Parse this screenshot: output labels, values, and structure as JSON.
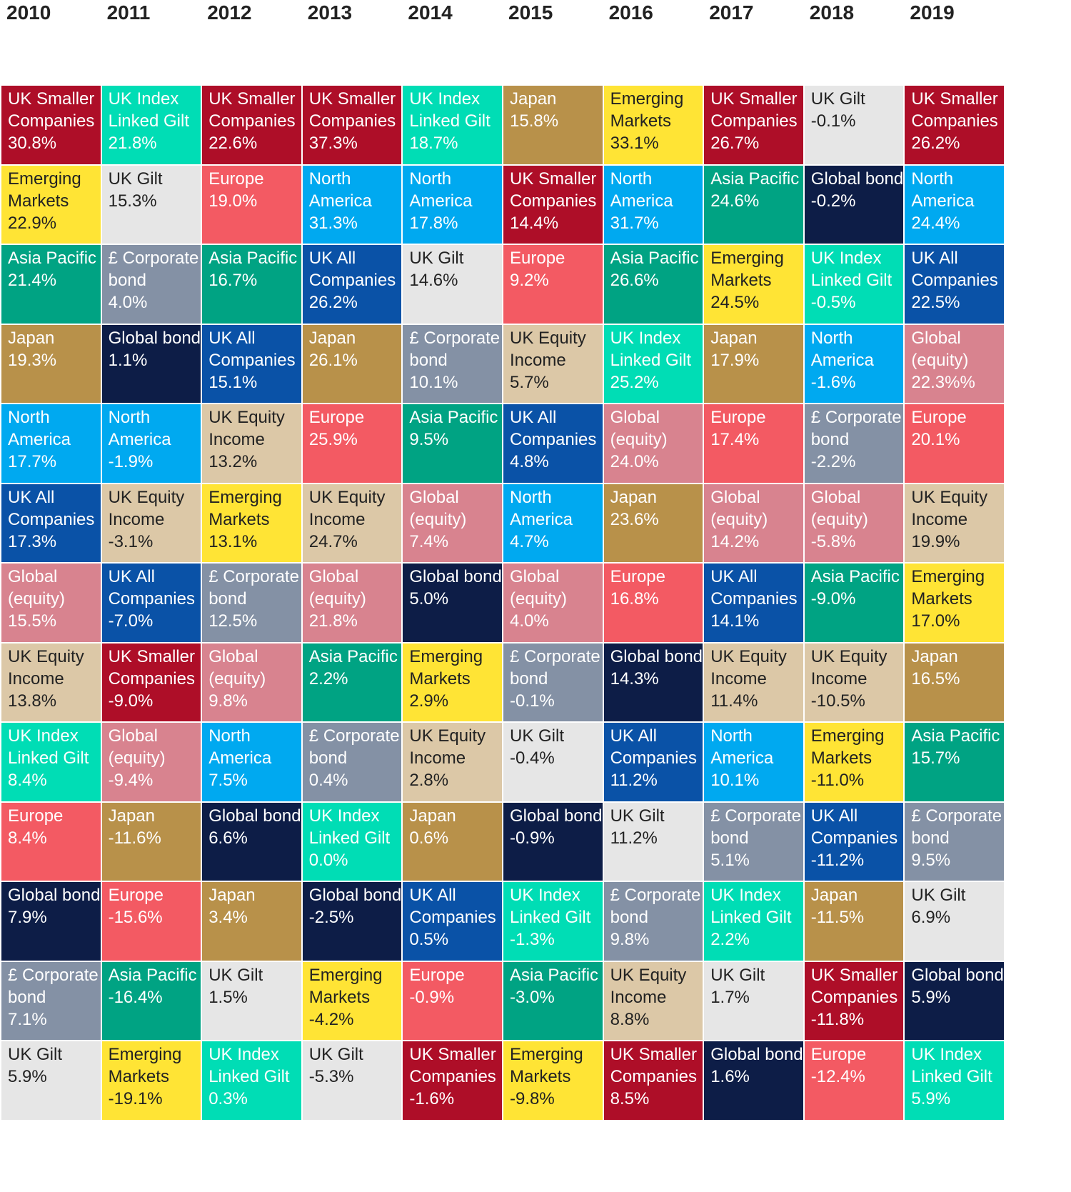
{
  "colors": {
    "UK Smaller Companies": "#AE0E28",
    "UK Index Linked Gilt": "#00DDB5",
    "Japan": "#B8914A",
    "Emerging Markets": "#FFE435",
    "UK Gilt": "#E6E6E6",
    "North America": "#00A9F0",
    "Europe": "#F35A63",
    "Global bond": "#0D1D47",
    "Asia Pacific": "#00A383",
    "£ Corporate bond": "#8491A5",
    "UK All Companies": "#0A52A7",
    "UK Equity Income": "#DCC8A7",
    "Global (equity)": "#D8838F"
  },
  "text_colors": {
    "UK Gilt": "#222222",
    "UK Equity Income": "#222222",
    "Emerging Markets": "#222222",
    "default": "#FFFFFF"
  },
  "chart_data": {
    "type": "table",
    "columns": [
      {
        "year": "2010",
        "cells": [
          {
            "asset": "UK Smaller Companies",
            "label": "UK Smaller\nCompanies",
            "return": "30.8%"
          },
          {
            "asset": "Emerging Markets",
            "label": "Emerging\nMarkets",
            "return": "22.9%"
          },
          {
            "asset": "Asia Pacific",
            "label": "Asia Pacific",
            "return": "21.4%"
          },
          {
            "asset": "Japan",
            "label": "Japan",
            "return": "19.3%"
          },
          {
            "asset": "North America",
            "label": "North\nAmerica",
            "return": "17.7%"
          },
          {
            "asset": "UK All Companies",
            "label": "UK All\nCompanies",
            "return": "17.3%"
          },
          {
            "asset": "Global (equity)",
            "label": "Global\n(equity)",
            "return": "15.5%"
          },
          {
            "asset": "UK Equity Income",
            "label": "UK Equity\nIncome",
            "return": "13.8%"
          },
          {
            "asset": "UK Index Linked Gilt",
            "label": "UK Index\nLinked Gilt",
            "return": "8.4%"
          },
          {
            "asset": "Europe",
            "label": "Europe",
            "return": "8.4%"
          },
          {
            "asset": "Global bond",
            "label": "Global bond",
            "return": "7.9%"
          },
          {
            "asset": "£ Corporate bond",
            "label": "£ Corporate\nbond",
            "return": "7.1%"
          },
          {
            "asset": "UK Gilt",
            "label": "UK Gilt",
            "return": "5.9%"
          }
        ]
      },
      {
        "year": "2011",
        "cells": [
          {
            "asset": "UK Index Linked Gilt",
            "label": "UK Index\nLinked Gilt",
            "return": "21.8%"
          },
          {
            "asset": "UK Gilt",
            "label": "UK Gilt",
            "return": "15.3%"
          },
          {
            "asset": "£ Corporate bond",
            "label": "£ Corporate\nbond",
            "return": "4.0%"
          },
          {
            "asset": "Global bond",
            "label": "Global bond",
            "return": "1.1%"
          },
          {
            "asset": "North America",
            "label": "North\nAmerica",
            "return": "-1.9%"
          },
          {
            "asset": "UK Equity Income",
            "label": "UK Equity\nIncome",
            "return": "-3.1%"
          },
          {
            "asset": "UK All Companies",
            "label": "UK All\nCompanies",
            "return": "-7.0%"
          },
          {
            "asset": "UK Smaller Companies",
            "label": "UK Smaller\nCompanies",
            "return": "-9.0%"
          },
          {
            "asset": "Global (equity)",
            "label": "Global\n(equity)",
            "return": "-9.4%"
          },
          {
            "asset": "Japan",
            "label": "Japan",
            "return": "-11.6%"
          },
          {
            "asset": "Europe",
            "label": "Europe",
            "return": "-15.6%"
          },
          {
            "asset": "Asia Pacific",
            "label": "Asia Pacific",
            "return": "-16.4%"
          },
          {
            "asset": "Emerging Markets",
            "label": "Emerging\nMarkets",
            "return": "-19.1%"
          }
        ]
      },
      {
        "year": "2012",
        "cells": [
          {
            "asset": "UK Smaller Companies",
            "label": "UK Smaller\nCompanies",
            "return": "22.6%"
          },
          {
            "asset": "Europe",
            "label": "Europe",
            "return": "19.0%"
          },
          {
            "asset": "Asia Pacific",
            "label": "Asia Pacific",
            "return": "16.7%"
          },
          {
            "asset": "UK All Companies",
            "label": "UK All\nCompanies",
            "return": "15.1%"
          },
          {
            "asset": "UK Equity Income",
            "label": "UK Equity\nIncome",
            "return": "13.2%"
          },
          {
            "asset": "Emerging Markets",
            "label": "Emerging\nMarkets",
            "return": "13.1%"
          },
          {
            "asset": "£ Corporate bond",
            "label": "£ Corporate\nbond",
            "return": "12.5%"
          },
          {
            "asset": "Global (equity)",
            "label": "Global\n(equity)",
            "return": "9.8%"
          },
          {
            "asset": "North America",
            "label": "North\nAmerica",
            "return": "7.5%"
          },
          {
            "asset": "Global bond",
            "label": "Global bond",
            "return": "6.6%"
          },
          {
            "asset": "Japan",
            "label": "Japan",
            "return": "3.4%"
          },
          {
            "asset": "UK Gilt",
            "label": "UK Gilt",
            "return": "1.5%"
          },
          {
            "asset": "UK Index Linked Gilt",
            "label": "UK Index\nLinked Gilt",
            "return": "0.3%"
          }
        ]
      },
      {
        "year": "2013",
        "cells": [
          {
            "asset": "UK Smaller Companies",
            "label": "UK Smaller\nCompanies",
            "return": "37.3%"
          },
          {
            "asset": "North America",
            "label": "North\nAmerica",
            "return": "31.3%"
          },
          {
            "asset": "UK All Companies",
            "label": "UK All\nCompanies",
            "return": "26.2%"
          },
          {
            "asset": "Japan",
            "label": "Japan",
            "return": "26.1%"
          },
          {
            "asset": "Europe",
            "label": "Europe",
            "return": "25.9%"
          },
          {
            "asset": "UK Equity Income",
            "label": "UK Equity\nIncome",
            "return": "24.7%"
          },
          {
            "asset": "Global (equity)",
            "label": "Global\n(equity)",
            "return": "21.8%"
          },
          {
            "asset": "Asia Pacific",
            "label": "Asia Pacific",
            "return": "2.2%"
          },
          {
            "asset": "£ Corporate bond",
            "label": "£ Corporate\nbond",
            "return": "0.4%"
          },
          {
            "asset": "UK Index Linked Gilt",
            "label": "UK Index\nLinked Gilt",
            "return": "0.0%"
          },
          {
            "asset": "Global bond",
            "label": "Global bond",
            "return": "-2.5%"
          },
          {
            "asset": "Emerging Markets",
            "label": "Emerging\nMarkets",
            "return": "-4.2%"
          },
          {
            "asset": "UK Gilt",
            "label": "UK Gilt",
            "return": "-5.3%"
          }
        ]
      },
      {
        "year": "2014",
        "cells": [
          {
            "asset": "UK Index Linked Gilt",
            "label": "UK Index\nLinked Gilt",
            "return": "18.7%"
          },
          {
            "asset": "North America",
            "label": "North\nAmerica",
            "return": "17.8%"
          },
          {
            "asset": "UK Gilt",
            "label": "UK Gilt",
            "return": "14.6%"
          },
          {
            "asset": "£ Corporate bond",
            "label": "£ Corporate\nbond",
            "return": "10.1%"
          },
          {
            "asset": "Asia Pacific",
            "label": "Asia Pacific",
            "return": "9.5%"
          },
          {
            "asset": "Global (equity)",
            "label": "Global\n(equity)",
            "return": "7.4%"
          },
          {
            "asset": "Global bond",
            "label": "Global bond",
            "return": "5.0%"
          },
          {
            "asset": "Emerging Markets",
            "label": "Emerging\nMarkets",
            "return": "2.9%"
          },
          {
            "asset": "UK Equity Income",
            "label": "UK Equity\nIncome",
            "return": "2.8%"
          },
          {
            "asset": "Japan",
            "label": "Japan",
            "return": "0.6%"
          },
          {
            "asset": "UK All Companies",
            "label": "UK All\nCompanies",
            "return": "0.5%"
          },
          {
            "asset": "Europe",
            "label": "Europe",
            "return": "-0.9%"
          },
          {
            "asset": "UK Smaller Companies",
            "label": "UK Smaller\nCompanies",
            "return": "-1.6%"
          }
        ]
      },
      {
        "year": "2015",
        "cells": [
          {
            "asset": "Japan",
            "label": "Japan",
            "return": "15.8%"
          },
          {
            "asset": "UK Smaller Companies",
            "label": "UK Smaller\nCompanies",
            "return": "14.4%"
          },
          {
            "asset": "Europe",
            "label": "Europe",
            "return": "9.2%"
          },
          {
            "asset": "UK Equity Income",
            "label": "UK Equity\nIncome",
            "return": "5.7%"
          },
          {
            "asset": "UK All Companies",
            "label": "UK All\nCompanies",
            "return": "4.8%"
          },
          {
            "asset": "North America",
            "label": "North\nAmerica",
            "return": "4.7%"
          },
          {
            "asset": "Global (equity)",
            "label": "Global\n(equity)",
            "return": "4.0%"
          },
          {
            "asset": "£ Corporate bond",
            "label": "£ Corporate\nbond",
            "return": "-0.1%"
          },
          {
            "asset": "UK Gilt",
            "label": "UK Gilt",
            "return": "-0.4%"
          },
          {
            "asset": "Global bond",
            "label": "Global bond",
            "return": "-0.9%"
          },
          {
            "asset": "UK Index Linked Gilt",
            "label": "UK Index\nLinked Gilt",
            "return": "-1.3%"
          },
          {
            "asset": "Asia Pacific",
            "label": "Asia Pacific",
            "return": "-3.0%"
          },
          {
            "asset": "Emerging Markets",
            "label": "Emerging\nMarkets",
            "return": "-9.8%"
          }
        ]
      },
      {
        "year": "2016",
        "cells": [
          {
            "asset": "Emerging Markets",
            "label": "Emerging\nMarkets",
            "return": "33.1%"
          },
          {
            "asset": "North America",
            "label": "North\nAmerica",
            "return": "31.7%"
          },
          {
            "asset": "Asia Pacific",
            "label": "Asia Pacific",
            "return": "26.6%"
          },
          {
            "asset": "UK Index Linked Gilt",
            "label": "UK Index\nLinked Gilt",
            "return": "25.2%"
          },
          {
            "asset": "Global (equity)",
            "label": "Global\n(equity)",
            "return": "24.0%"
          },
          {
            "asset": "Japan",
            "label": "Japan",
            "return": "23.6%"
          },
          {
            "asset": "Europe",
            "label": "Europe",
            "return": "16.8%"
          },
          {
            "asset": "Global bond",
            "label": "Global bond",
            "return": "14.3%"
          },
          {
            "asset": "UK All Companies",
            "label": "UK All\nCompanies",
            "return": "11.2%"
          },
          {
            "asset": "UK Gilt",
            "label": "UK Gilt",
            "return": "11.2%"
          },
          {
            "asset": "£ Corporate bond",
            "label": "£ Corporate\nbond",
            "return": "9.8%"
          },
          {
            "asset": "UK Equity Income",
            "label": "UK Equity\nIncome",
            "return": "8.8%"
          },
          {
            "asset": "UK Smaller Companies",
            "label": "UK Smaller\nCompanies",
            "return": "8.5%"
          }
        ]
      },
      {
        "year": "2017",
        "cells": [
          {
            "asset": "UK Smaller Companies",
            "label": "UK Smaller\nCompanies",
            "return": "26.7%"
          },
          {
            "asset": "Asia Pacific",
            "label": "Asia Pacific",
            "return": "24.6%"
          },
          {
            "asset": "Emerging Markets",
            "label": "Emerging\nMarkets",
            "return": "24.5%"
          },
          {
            "asset": "Japan",
            "label": "Japan",
            "return": "17.9%"
          },
          {
            "asset": "Europe",
            "label": "Europe",
            "return": "17.4%"
          },
          {
            "asset": "Global (equity)",
            "label": "Global\n(equity)",
            "return": "14.2%"
          },
          {
            "asset": "UK All Companies",
            "label": "UK All\nCompanies",
            "return": "14.1%"
          },
          {
            "asset": "UK Equity Income",
            "label": "UK Equity\nIncome",
            "return": "11.4%"
          },
          {
            "asset": "North America",
            "label": "North\nAmerica",
            "return": "10.1%"
          },
          {
            "asset": "£ Corporate bond",
            "label": "£ Corporate\nbond",
            "return": "5.1%"
          },
          {
            "asset": "UK Index Linked Gilt",
            "label": "UK Index\nLinked Gilt",
            "return": "2.2%"
          },
          {
            "asset": "UK Gilt",
            "label": "UK Gilt",
            "return": "1.7%"
          },
          {
            "asset": "Global bond",
            "label": "Global bond",
            "return": "1.6%"
          }
        ]
      },
      {
        "year": "2018",
        "cells": [
          {
            "asset": "UK Gilt",
            "label": "UK Gilt",
            "return": "-0.1%"
          },
          {
            "asset": "Global bond",
            "label": "Global bond",
            "return": "-0.2%"
          },
          {
            "asset": "UK Index Linked Gilt",
            "label": "UK Index\nLinked Gilt",
            "return": "-0.5%"
          },
          {
            "asset": "North America",
            "label": "North\nAmerica",
            "return": "-1.6%"
          },
          {
            "asset": "£ Corporate bond",
            "label": "£ Corporate\nbond",
            "return": "-2.2%"
          },
          {
            "asset": "Global (equity)",
            "label": "Global\n(equity)",
            "return": "-5.8%"
          },
          {
            "asset": "Asia Pacific",
            "label": "Asia Pacific",
            "return": "-9.0%"
          },
          {
            "asset": "UK Equity Income",
            "label": "UK Equity\nIncome",
            "return": "-10.5%"
          },
          {
            "asset": "Emerging Markets",
            "label": "Emerging\nMarkets",
            "return": "-11.0%"
          },
          {
            "asset": "UK All Companies",
            "label": "UK All\nCompanies",
            "return": "-11.2%"
          },
          {
            "asset": "Japan",
            "label": "Japan",
            "return": "-11.5%"
          },
          {
            "asset": "UK Smaller Companies",
            "label": "UK Smaller\nCompanies",
            "return": "-11.8%"
          },
          {
            "asset": "Europe",
            "label": "Europe",
            "return": "-12.4%"
          }
        ]
      },
      {
        "year": "2019",
        "cells": [
          {
            "asset": "UK Smaller Companies",
            "label": "UK Smaller\nCompanies",
            "return": "26.2%"
          },
          {
            "asset": "North America",
            "label": "North\nAmerica",
            "return": "24.4%"
          },
          {
            "asset": "UK All Companies",
            "label": "UK All\nCompanies",
            "return": "22.5%"
          },
          {
            "asset": "Global (equity)",
            "label": "Global\n(equity)",
            "return": "22.3%%"
          },
          {
            "asset": "Europe",
            "label": "Europe",
            "return": "20.1%"
          },
          {
            "asset": "UK Equity Income",
            "label": "UK Equity\nIncome",
            "return": "19.9%"
          },
          {
            "asset": "Emerging Markets",
            "label": "Emerging\nMarkets",
            "return": "17.0%"
          },
          {
            "asset": "Japan",
            "label": "Japan",
            "return": "16.5%"
          },
          {
            "asset": "Asia Pacific",
            "label": "Asia Pacific",
            "return": "15.7%"
          },
          {
            "asset": "£ Corporate bond",
            "label": "£ Corporate\nbond",
            "return": "9.5%"
          },
          {
            "asset": "UK Gilt",
            "label": "UK Gilt",
            "return": "6.9%"
          },
          {
            "asset": "Global bond",
            "label": "Global bond",
            "return": "5.9%"
          },
          {
            "asset": "UK Index Linked Gilt",
            "label": "UK Index\nLinked Gilt",
            "return": "5.9%"
          }
        ]
      }
    ]
  }
}
